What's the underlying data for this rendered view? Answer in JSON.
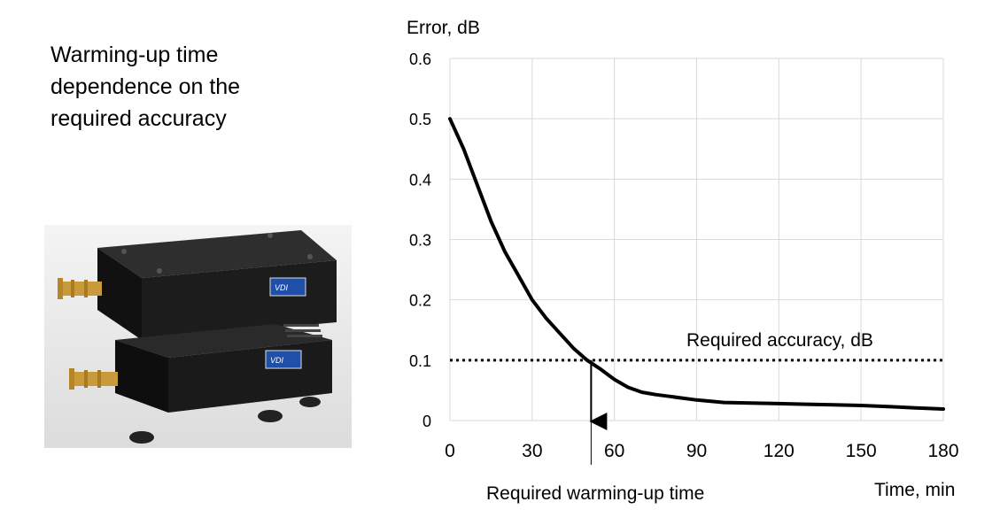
{
  "caption": {
    "lines": [
      "Warming-up time",
      "dependence on the",
      "required  accuracy"
    ]
  },
  "photo": {
    "device_label_top": "VDI",
    "device_label_bottom": "VDI"
  },
  "chart_data": {
    "type": "line",
    "ylabel": "Error, dB",
    "xlabel": "Time, min",
    "xlim": [
      0,
      180
    ],
    "ylim": [
      0,
      0.6
    ],
    "x_ticks": [
      "0",
      "30",
      "60",
      "90",
      "120",
      "150",
      "180"
    ],
    "y_ticks": [
      "0",
      "0.1",
      "0.2",
      "0.3",
      "0.4",
      "0.5",
      "0.6"
    ],
    "grid": true,
    "series": [
      {
        "x": [
          0,
          5,
          10,
          15,
          20,
          25,
          30,
          35,
          40,
          45,
          50,
          55,
          60,
          65,
          70,
          75,
          80,
          90,
          100,
          110,
          120,
          130,
          140,
          150,
          160,
          170,
          180
        ],
        "y": [
          0.5,
          0.45,
          0.39,
          0.33,
          0.28,
          0.24,
          0.2,
          0.17,
          0.145,
          0.12,
          0.1,
          0.085,
          0.068,
          0.055,
          0.047,
          0.043,
          0.04,
          0.034,
          0.03,
          0.029,
          0.028,
          0.027,
          0.026,
          0.025,
          0.023,
          0.021,
          0.019
        ]
      }
    ],
    "threshold": {
      "value": 0.1,
      "label": "Required accuracy, dB"
    },
    "marker": {
      "x": 51.5,
      "label": "Required warming-up time"
    }
  }
}
